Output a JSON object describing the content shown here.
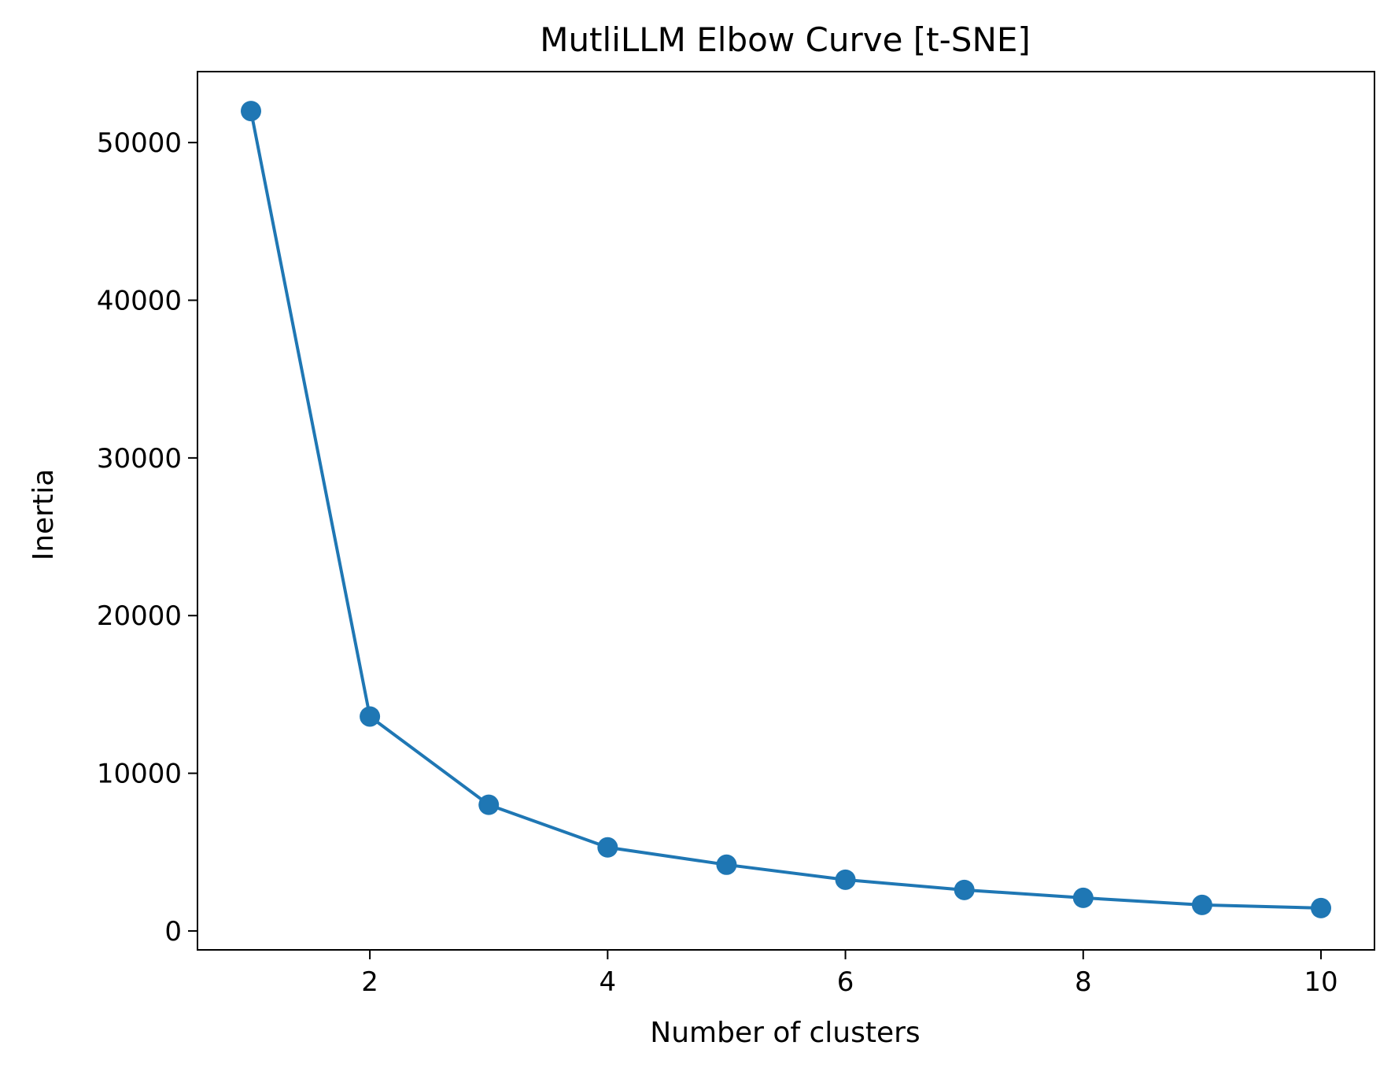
{
  "chart_data": {
    "type": "line",
    "title": "MutliLLM Elbow Curve [t-SNE]",
    "xlabel": "Number of clusters",
    "ylabel": "Inertia",
    "x": [
      1,
      2,
      3,
      4,
      5,
      6,
      7,
      8,
      9,
      10
    ],
    "series": [
      {
        "values": [
          52000,
          13600,
          8000,
          5300,
          4200,
          3250,
          2600,
          2100,
          1650,
          1450
        ],
        "color": "#1f77b4",
        "marker": "circle"
      }
    ],
    "xlim": [
      0.55,
      10.45
    ],
    "ylim": [
      -1200,
      54500
    ],
    "xticks": [
      2,
      4,
      6,
      8,
      10
    ],
    "xtick_labels": [
      "2",
      "4",
      "6",
      "8",
      "10"
    ],
    "yticks": [
      0,
      10000,
      20000,
      30000,
      40000,
      50000
    ],
    "ytick_labels": [
      "0",
      "10000",
      "20000",
      "30000",
      "40000",
      "50000"
    ],
    "grid": false,
    "legend": "none"
  }
}
